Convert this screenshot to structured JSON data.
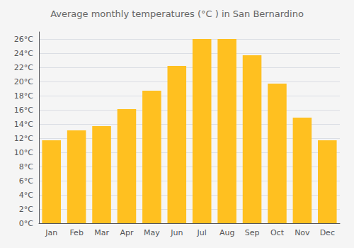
{
  "chart_data": {
    "type": "bar",
    "title": "Average monthly temperatures (°C ) in San Bernardino",
    "categories": [
      "Jan",
      "Feb",
      "Mar",
      "Apr",
      "May",
      "Jun",
      "Jul",
      "Aug",
      "Sep",
      "Oct",
      "Nov",
      "Dec"
    ],
    "values": [
      11.7,
      13.1,
      13.7,
      16.1,
      18.7,
      22.2,
      26.0,
      26.0,
      23.7,
      19.7,
      14.9,
      11.7
    ],
    "color": "#FFC020",
    "ylim": [
      0,
      27
    ],
    "yticks": [
      {
        "value": 0,
        "label": "0°C"
      },
      {
        "value": 2,
        "label": "2°C"
      },
      {
        "value": 4,
        "label": "4°C"
      },
      {
        "value": 6,
        "label": "6°C"
      },
      {
        "value": 8,
        "label": "8°C"
      },
      {
        "value": 10,
        "label": "10°C"
      },
      {
        "value": 12,
        "label": "12°C"
      },
      {
        "value": 14,
        "label": "14°C"
      },
      {
        "value": 16,
        "label": "16°C"
      },
      {
        "value": 18,
        "label": "18°C"
      },
      {
        "value": 20,
        "label": "20°C"
      },
      {
        "value": 22,
        "label": "22°C"
      },
      {
        "value": 24,
        "label": "24°C"
      },
      {
        "value": 26,
        "label": "26°C"
      }
    ],
    "grid": true
  }
}
